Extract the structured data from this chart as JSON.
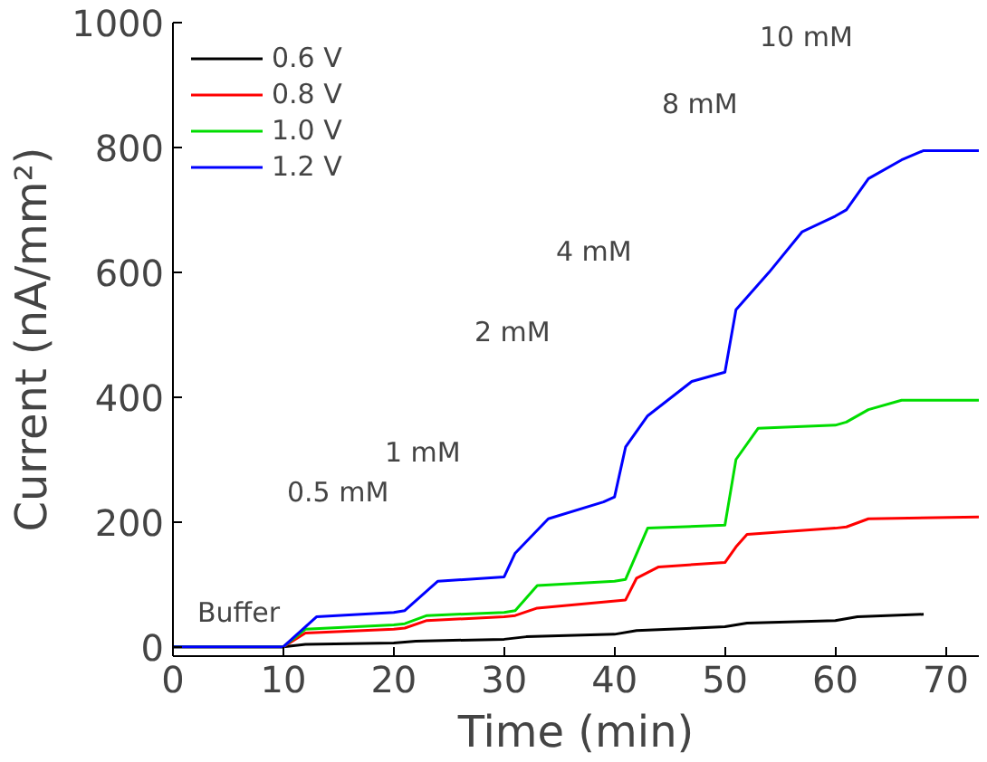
{
  "chart_data": {
    "type": "line",
    "xlabel": "Time (min)",
    "ylabel": "Current (nA/mm²)",
    "xlim": [
      0,
      73
    ],
    "ylim": [
      -15,
      1000
    ],
    "xticks": [
      0,
      10,
      20,
      30,
      40,
      50,
      60,
      70
    ],
    "yticks": [
      0,
      200,
      400,
      600,
      800,
      1000
    ],
    "grid": false,
    "legend": "top left",
    "line_style": "solid",
    "marker": "none",
    "series": [
      {
        "name": "0.6 V",
        "color": "#000000",
        "x": [
          0,
          10,
          12,
          20,
          22,
          30,
          32,
          40,
          42,
          50,
          52,
          60,
          62,
          68
        ],
        "values": [
          0,
          0,
          4,
          6,
          9,
          12,
          16,
          20,
          26,
          32,
          38,
          42,
          48,
          52
        ]
      },
      {
        "name": "0.8 V",
        "color": "#ff0000",
        "x": [
          0,
          10,
          12,
          20,
          21,
          23,
          30,
          31,
          33,
          41,
          42,
          44,
          50,
          51,
          52,
          60,
          61,
          63,
          73
        ],
        "values": [
          0,
          0,
          22,
          28,
          30,
          42,
          48,
          50,
          62,
          75,
          110,
          128,
          135,
          160,
          180,
          190,
          192,
          205,
          208
        ]
      },
      {
        "name": "1.0 V",
        "color": "#00dd00",
        "x": [
          0,
          10,
          12,
          20,
          21,
          23,
          30,
          31,
          33,
          40,
          41,
          43,
          50,
          51,
          53,
          60,
          61,
          63,
          66,
          73
        ],
        "values": [
          0,
          0,
          28,
          35,
          37,
          50,
          55,
          58,
          98,
          105,
          108,
          190,
          195,
          300,
          350,
          355,
          360,
          380,
          395,
          395
        ]
      },
      {
        "name": "1.2 V",
        "color": "#0000ff",
        "x": [
          0,
          10,
          13,
          20,
          21,
          24,
          30,
          31,
          34,
          39,
          40,
          41,
          43,
          47,
          50,
          51,
          54,
          57,
          60,
          61,
          63,
          66,
          68,
          73
        ],
        "values": [
          0,
          0,
          48,
          55,
          58,
          105,
          112,
          150,
          205,
          232,
          240,
          320,
          370,
          425,
          440,
          540,
          600,
          665,
          690,
          700,
          750,
          780,
          795,
          795
        ]
      }
    ],
    "annotations": [
      "Buffer",
      "0.5 mM",
      "1 mM",
      "2 mM",
      "4 mM",
      "8 mM",
      "10 mM"
    ]
  }
}
